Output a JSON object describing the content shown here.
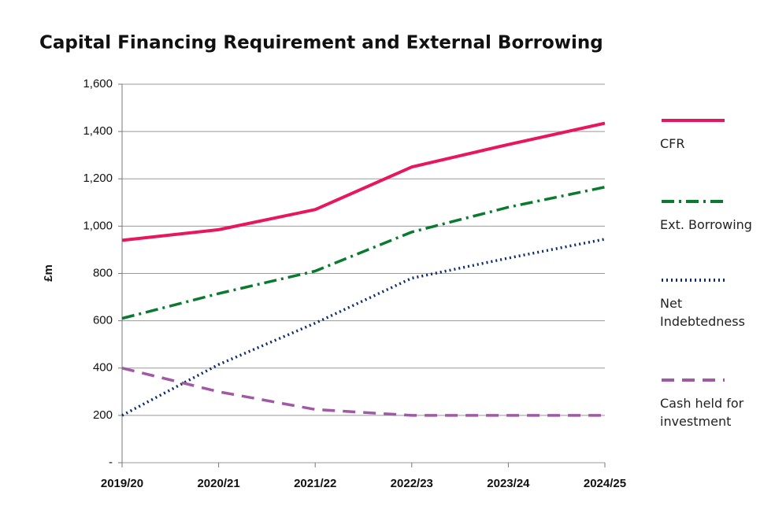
{
  "chart_data": {
    "type": "line",
    "title": "Capital Financing Requirement and External Borrowing",
    "y_label": "£m",
    "categories": [
      "2019/20",
      "2020/21",
      "2021/22",
      "2022/23",
      "2023/24",
      "2024/25"
    ],
    "series": [
      {
        "name": "CFR",
        "color": "#e8175d",
        "style": "solid",
        "values": [
          940,
          985,
          1070,
          1250,
          1345,
          1435
        ]
      },
      {
        "name": "Ext. Borrowing",
        "color": "#0a7a2e",
        "style": "dashdot",
        "values": [
          610,
          715,
          810,
          975,
          1080,
          1165
        ]
      },
      {
        "name": "Net Indebtedness",
        "color": "#0d2a6b",
        "style": "dotted",
        "values": [
          200,
          415,
          590,
          780,
          865,
          945
        ]
      },
      {
        "name": "Cash held for investment",
        "color": "#a05aa5",
        "style": "dashed",
        "values": [
          400,
          300,
          225,
          200,
          200,
          200
        ]
      }
    ],
    "ylim": [
      0,
      1600
    ],
    "yticks": [
      {
        "value": 0,
        "label": "-"
      },
      200,
      400,
      600,
      800,
      {
        "value": 1000,
        "label": "1,000"
      },
      {
        "value": 1200,
        "label": "1,200"
      },
      {
        "value": 1400,
        "label": "1,400"
      },
      {
        "value": 1600,
        "label": "1,600"
      }
    ],
    "grid": true,
    "legend": "right"
  }
}
